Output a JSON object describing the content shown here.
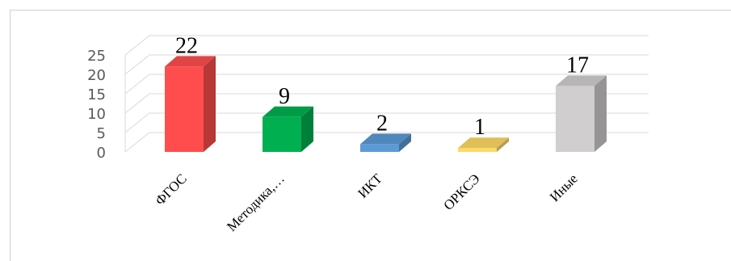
{
  "title": "",
  "chart_data": {
    "type": "bar",
    "three_d": true,
    "categories": [
      "ФГОС",
      "Методика,…",
      "ИКТ",
      "ОРКСЭ",
      "Иные"
    ],
    "values": [
      22,
      9,
      2,
      1,
      17
    ],
    "value_labels": [
      "22",
      "9",
      "2",
      "1",
      "17"
    ],
    "colors": [
      "#ff4d4d",
      "#00b050",
      "#5b9bd5",
      "#ffd966",
      "#d0cece"
    ],
    "yticks": [
      "0",
      "5",
      "10",
      "15",
      "20",
      "25"
    ],
    "ylim": [
      0,
      25
    ],
    "grid": true,
    "legend": "none"
  }
}
